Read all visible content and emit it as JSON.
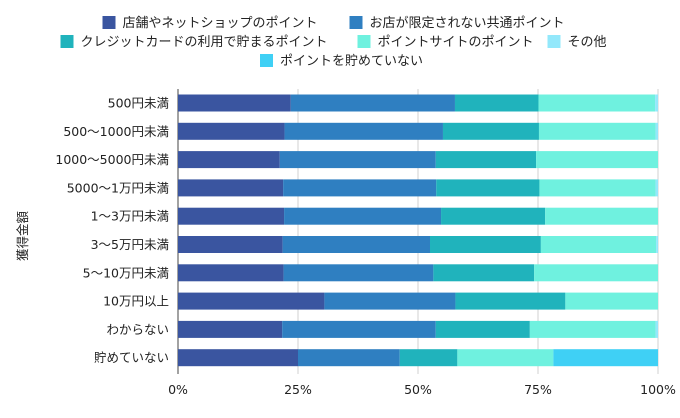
{
  "chart_data": {
    "type": "bar",
    "orientation": "horizontal",
    "stacked": "percent",
    "ylabel": "獲得金額",
    "xlim": [
      0,
      100
    ],
    "x_ticks": [
      "0%",
      "25%",
      "50%",
      "75%",
      "100%"
    ],
    "categories": [
      "500円未満",
      "500〜1000円未満",
      "1000〜5000円未満",
      "5000〜1万円未満",
      "1〜3万円未満",
      "3〜5万円未満",
      "5〜10万円未満",
      "10万円以上",
      "わからない",
      "貯めていない"
    ],
    "series": [
      {
        "name": "店舗やネットショップのポイント",
        "color": "#3a55a0",
        "values": [
          23.5,
          22.2,
          21.2,
          21.9,
          22.1,
          21.8,
          22.0,
          30.5,
          21.7,
          25.0
        ]
      },
      {
        "name": "お店が限定されない共通ポイント",
        "color": "#2f7fc1",
        "values": [
          34.2,
          33.0,
          32.5,
          31.9,
          32.7,
          30.7,
          31.2,
          27.3,
          32.0,
          21.2
        ]
      },
      {
        "name": "クレジットカードの利用で貯まるポイント",
        "color": "#20b3bc",
        "values": [
          17.4,
          20.0,
          20.9,
          21.5,
          21.7,
          23.1,
          21.0,
          22.9,
          19.6,
          12.0
        ]
      },
      {
        "name": "ポイントサイトのポイント",
        "color": "#6ff1df",
        "values": [
          24.3,
          24.3,
          25.4,
          24.2,
          23.5,
          24.0,
          25.8,
          19.3,
          26.2,
          20.0
        ]
      },
      {
        "name": "その他",
        "color": "#93e8fb",
        "values": [
          0.6,
          0.5,
          0.0,
          0.5,
          0.0,
          0.4,
          0.0,
          0.0,
          0.5,
          0.0
        ]
      },
      {
        "name": "ポイントを貯めていない",
        "color": "#3fd0f5",
        "values": [
          0.0,
          0.0,
          0.0,
          0.0,
          0.0,
          0.0,
          0.0,
          0.0,
          0.0,
          21.8
        ]
      }
    ]
  }
}
